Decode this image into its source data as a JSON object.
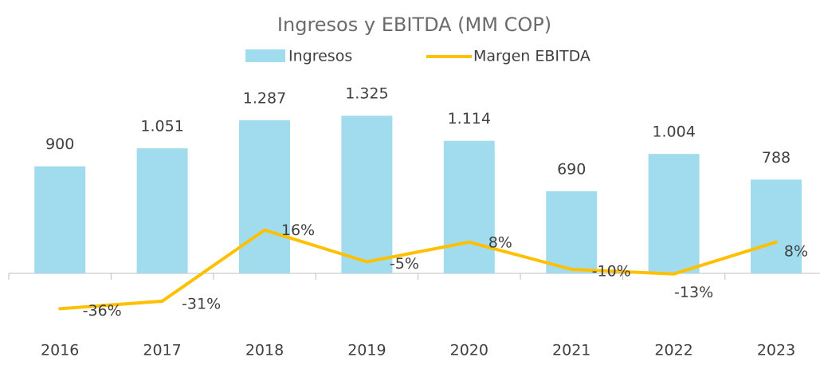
{
  "chart_data": {
    "type": "bar_line",
    "title": "Ingresos y EBITDA (MM COP)",
    "categories": [
      "2016",
      "2017",
      "2018",
      "2019",
      "2020",
      "2021",
      "2022",
      "2023"
    ],
    "series": [
      {
        "name": "Ingresos",
        "type": "bar",
        "color": "#a1dcee",
        "values": [
          900,
          1051,
          1287,
          1325,
          1114,
          690,
          1004,
          788
        ],
        "value_labels": [
          "900",
          "1.051",
          "1.287",
          "1.325",
          "1.114",
          "690",
          "1.004",
          "788"
        ]
      },
      {
        "name": "Margen EBITDA",
        "type": "line",
        "axis": "y2",
        "color": "#ffc000",
        "values": [
          -36,
          -31,
          16,
          -5,
          8,
          -10,
          -13,
          8
        ],
        "value_labels": [
          "-36%",
          "-31%",
          "16%",
          "-5%",
          "8%",
          "-10%",
          "-13%",
          "8%"
        ]
      }
    ],
    "ylim": [
      0,
      1400
    ],
    "y2lim": [
      -40,
      20
    ]
  }
}
